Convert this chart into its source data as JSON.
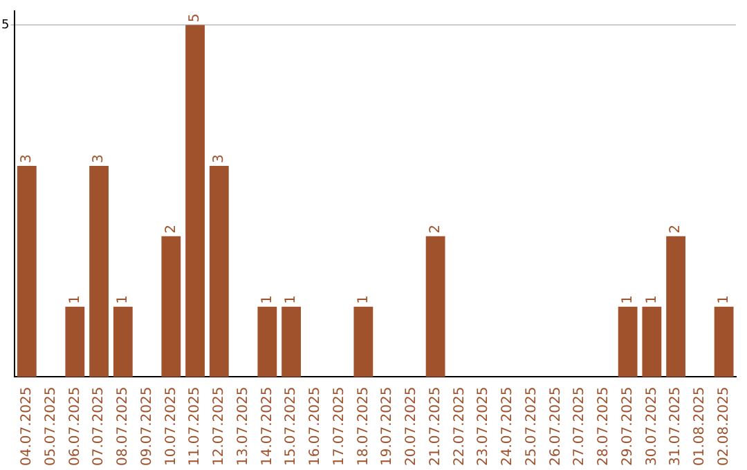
{
  "chart_data": {
    "type": "bar",
    "categories": [
      "04.07.2025",
      "05.07.2025",
      "06.07.2025",
      "07.07.2025",
      "08.07.2025",
      "09.07.2025",
      "10.07.2025",
      "11.07.2025",
      "12.07.2025",
      "13.07.2025",
      "14.07.2025",
      "15.07.2025",
      "16.07.2025",
      "17.07.2025",
      "18.07.2025",
      "19.07.2025",
      "20.07.2025",
      "21.07.2025",
      "22.07.2025",
      "23.07.2025",
      "24.07.2025",
      "25.07.2025",
      "26.07.2025",
      "27.07.2025",
      "28.07.2025",
      "29.07.2025",
      "30.07.2025",
      "31.07.2025",
      "01.08.2025",
      "02.08.2025"
    ],
    "values": [
      3,
      0,
      1,
      3,
      1,
      0,
      2,
      5,
      3,
      0,
      1,
      1,
      0,
      0,
      1,
      0,
      0,
      2,
      0,
      0,
      0,
      0,
      0,
      0,
      0,
      1,
      1,
      2,
      0,
      1
    ],
    "value_labels": [
      "3",
      null,
      "1",
      "3",
      "1",
      null,
      "2",
      "5",
      "3",
      null,
      "1",
      "1",
      null,
      null,
      "1",
      null,
      null,
      "2",
      null,
      null,
      null,
      null,
      null,
      null,
      null,
      "1",
      "1",
      "2",
      null,
      "1"
    ],
    "color": "#a0522d",
    "ylim": [
      0,
      5.2
    ],
    "yticks": [
      5
    ],
    "grid": "y",
    "legend": false
  }
}
